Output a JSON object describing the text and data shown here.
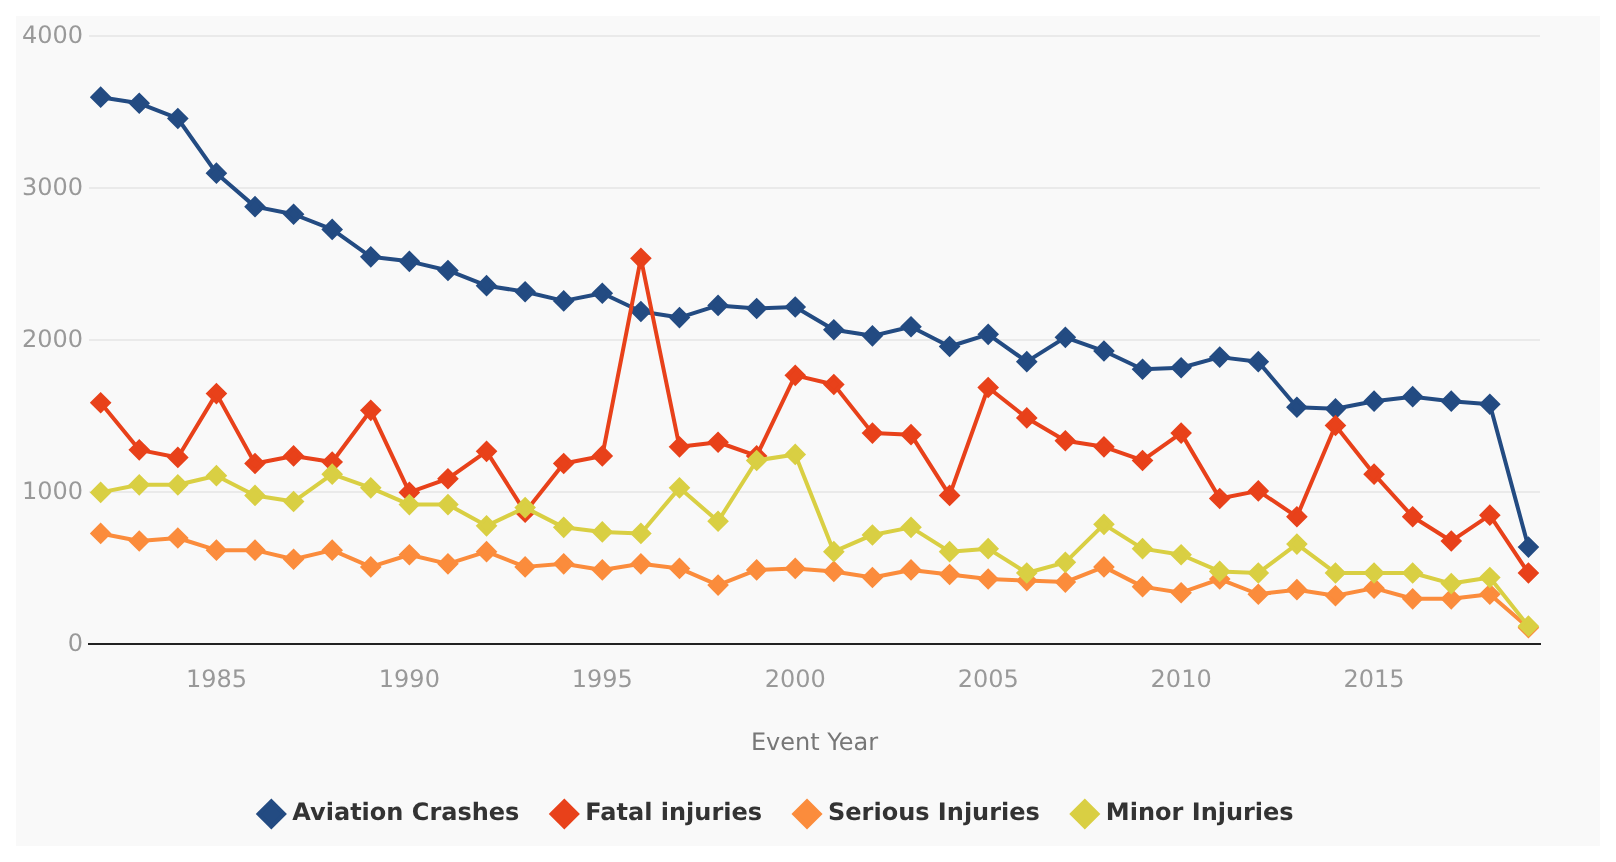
{
  "chart_data": {
    "type": "line",
    "xlabel": "Event Year",
    "x": [
      1982,
      1983,
      1984,
      1985,
      1986,
      1987,
      1988,
      1989,
      1990,
      1991,
      1992,
      1993,
      1994,
      1995,
      1996,
      1997,
      1998,
      1999,
      2000,
      2001,
      2002,
      2003,
      2004,
      2005,
      2006,
      2007,
      2008,
      2009,
      2010,
      2011,
      2012,
      2013,
      2014,
      2015,
      2016,
      2017,
      2018,
      2019
    ],
    "series": [
      {
        "name": "Aviation Crashes",
        "color": "#234b82",
        "values": [
          3600,
          3560,
          3460,
          3100,
          2880,
          2830,
          2730,
          2550,
          2520,
          2460,
          2360,
          2320,
          2260,
          2310,
          2190,
          2150,
          2230,
          2210,
          2220,
          2070,
          2030,
          2090,
          1960,
          2040,
          1860,
          2020,
          1930,
          1810,
          1820,
          1890,
          1860,
          1560,
          1550,
          1600,
          1630,
          1600,
          1580,
          640
        ]
      },
      {
        "name": "Fatal injuries",
        "color": "#e8411a",
        "values": [
          1590,
          1280,
          1230,
          1650,
          1190,
          1240,
          1200,
          1540,
          1000,
          1090,
          1270,
          870,
          1190,
          1240,
          2540,
          1300,
          1330,
          1240,
          1770,
          1710,
          1390,
          1380,
          980,
          1690,
          1490,
          1340,
          1300,
          1210,
          1390,
          960,
          1010,
          840,
          1440,
          1120,
          840,
          680,
          850,
          470
        ]
      },
      {
        "name": "Serious Injuries",
        "color": "#fb8c3c",
        "values": [
          730,
          680,
          700,
          620,
          620,
          560,
          620,
          510,
          590,
          530,
          610,
          510,
          530,
          490,
          530,
          500,
          390,
          490,
          500,
          480,
          440,
          490,
          460,
          430,
          420,
          410,
          510,
          380,
          340,
          430,
          330,
          360,
          320,
          370,
          300,
          300,
          330,
          110
        ]
      },
      {
        "name": "Minor Injuries",
        "color": "#d9cf43",
        "values": [
          1000,
          1050,
          1050,
          1110,
          980,
          940,
          1120,
          1030,
          920,
          920,
          780,
          900,
          770,
          740,
          730,
          1030,
          810,
          1210,
          1250,
          610,
          720,
          770,
          610,
          630,
          470,
          540,
          790,
          630,
          590,
          480,
          470,
          660,
          470,
          470,
          470,
          400,
          440,
          120
        ]
      }
    ],
    "xlim": [
      1981.7,
      2019.3
    ],
    "xticks": [
      1985,
      1990,
      1995,
      2000,
      2005,
      2010,
      2015
    ],
    "ylim": [
      0,
      4000
    ],
    "yticks": [
      0,
      1000,
      2000,
      3000,
      4000
    ],
    "grid": "y",
    "legend": "bottom",
    "marker": "diamond",
    "line_style": "solid"
  }
}
